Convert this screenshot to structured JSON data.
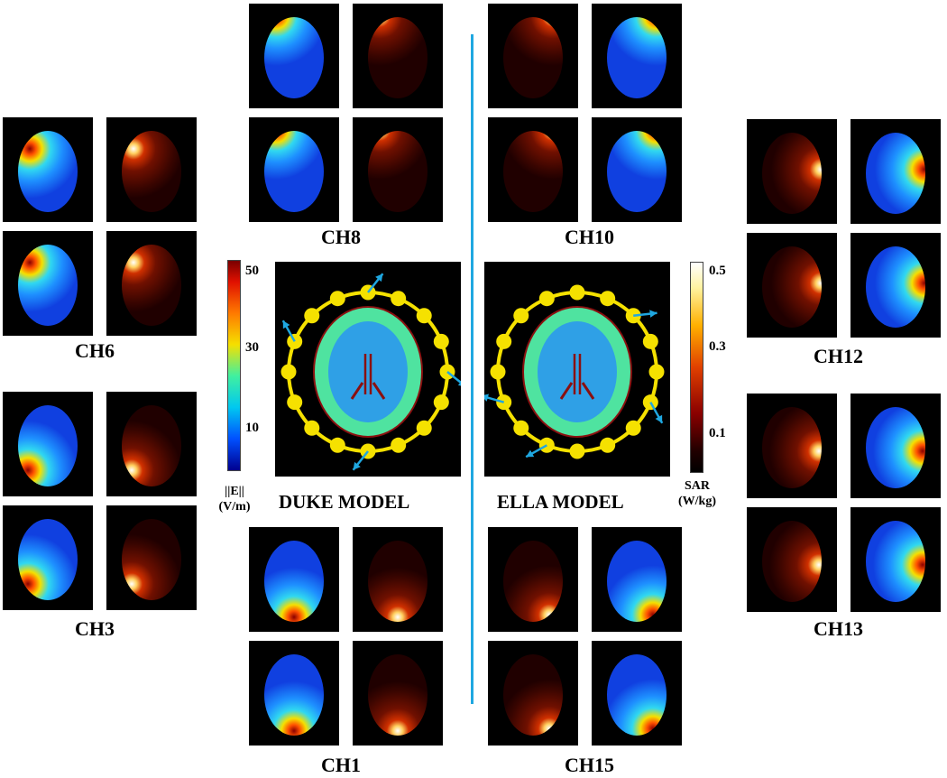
{
  "groups": [
    {
      "label": "CH8",
      "types": [
        [
          "e",
          "s"
        ],
        [
          "e",
          "s"
        ]
      ],
      "hot": [
        0.3,
        0.12
      ]
    },
    {
      "label": "CH10",
      "types": [
        [
          "s",
          "e"
        ],
        [
          "s",
          "e"
        ]
      ],
      "hot": [
        0.72,
        0.12
      ]
    },
    {
      "label": "CH6",
      "types": [
        [
          "e",
          "s"
        ],
        [
          "e",
          "s"
        ]
      ],
      "hot": [
        0.3,
        0.3
      ]
    },
    {
      "label": "CH12",
      "types": [
        [
          "s",
          "e"
        ],
        [
          "s",
          "e"
        ]
      ],
      "hot": [
        0.82,
        0.48
      ]
    },
    {
      "label": "CH3",
      "types": [
        [
          "e",
          "s"
        ],
        [
          "e",
          "s"
        ]
      ],
      "hot": [
        0.28,
        0.75
      ]
    },
    {
      "label": "CH13",
      "types": [
        [
          "s",
          "e"
        ],
        [
          "s",
          "e"
        ]
      ],
      "hot": [
        0.8,
        0.55
      ]
    },
    {
      "label": "CH1",
      "types": [
        [
          "e",
          "s"
        ],
        [
          "e",
          "s"
        ]
      ],
      "hot": [
        0.5,
        0.86
      ]
    },
    {
      "label": "CH15",
      "types": [
        [
          "s",
          "e"
        ],
        [
          "s",
          "e"
        ]
      ],
      "hot": [
        0.68,
        0.84
      ]
    }
  ],
  "models": [
    {
      "label": "DUKE MODEL",
      "arrows": [
        0,
        4,
        8,
        13
      ]
    },
    {
      "label": "ELLA MODEL",
      "arrows": [
        2,
        5,
        9,
        11
      ]
    }
  ],
  "colorbars": {
    "e_field": {
      "title_line1": "||E||",
      "title_line2": "(V/m)",
      "ticks": [
        "50",
        "30",
        "10"
      ],
      "range": [
        0,
        55
      ],
      "tick_values": [
        50,
        30,
        10
      ]
    },
    "sar": {
      "title_line1": "SAR",
      "title_line2": "(W/kg)",
      "ticks": [
        "0.5",
        "0.3",
        "0.1"
      ],
      "range": [
        0,
        0.52
      ],
      "tick_values": [
        0.5,
        0.3,
        0.1
      ]
    }
  },
  "colors": {
    "divider": "#1fa7e0",
    "coil": "#f5e100",
    "arrow": "#1fa7e0",
    "tissue_gm": "#4fe3a0",
    "tissue_wm": "#2fa0e6",
    "csf": "#8a1010"
  }
}
